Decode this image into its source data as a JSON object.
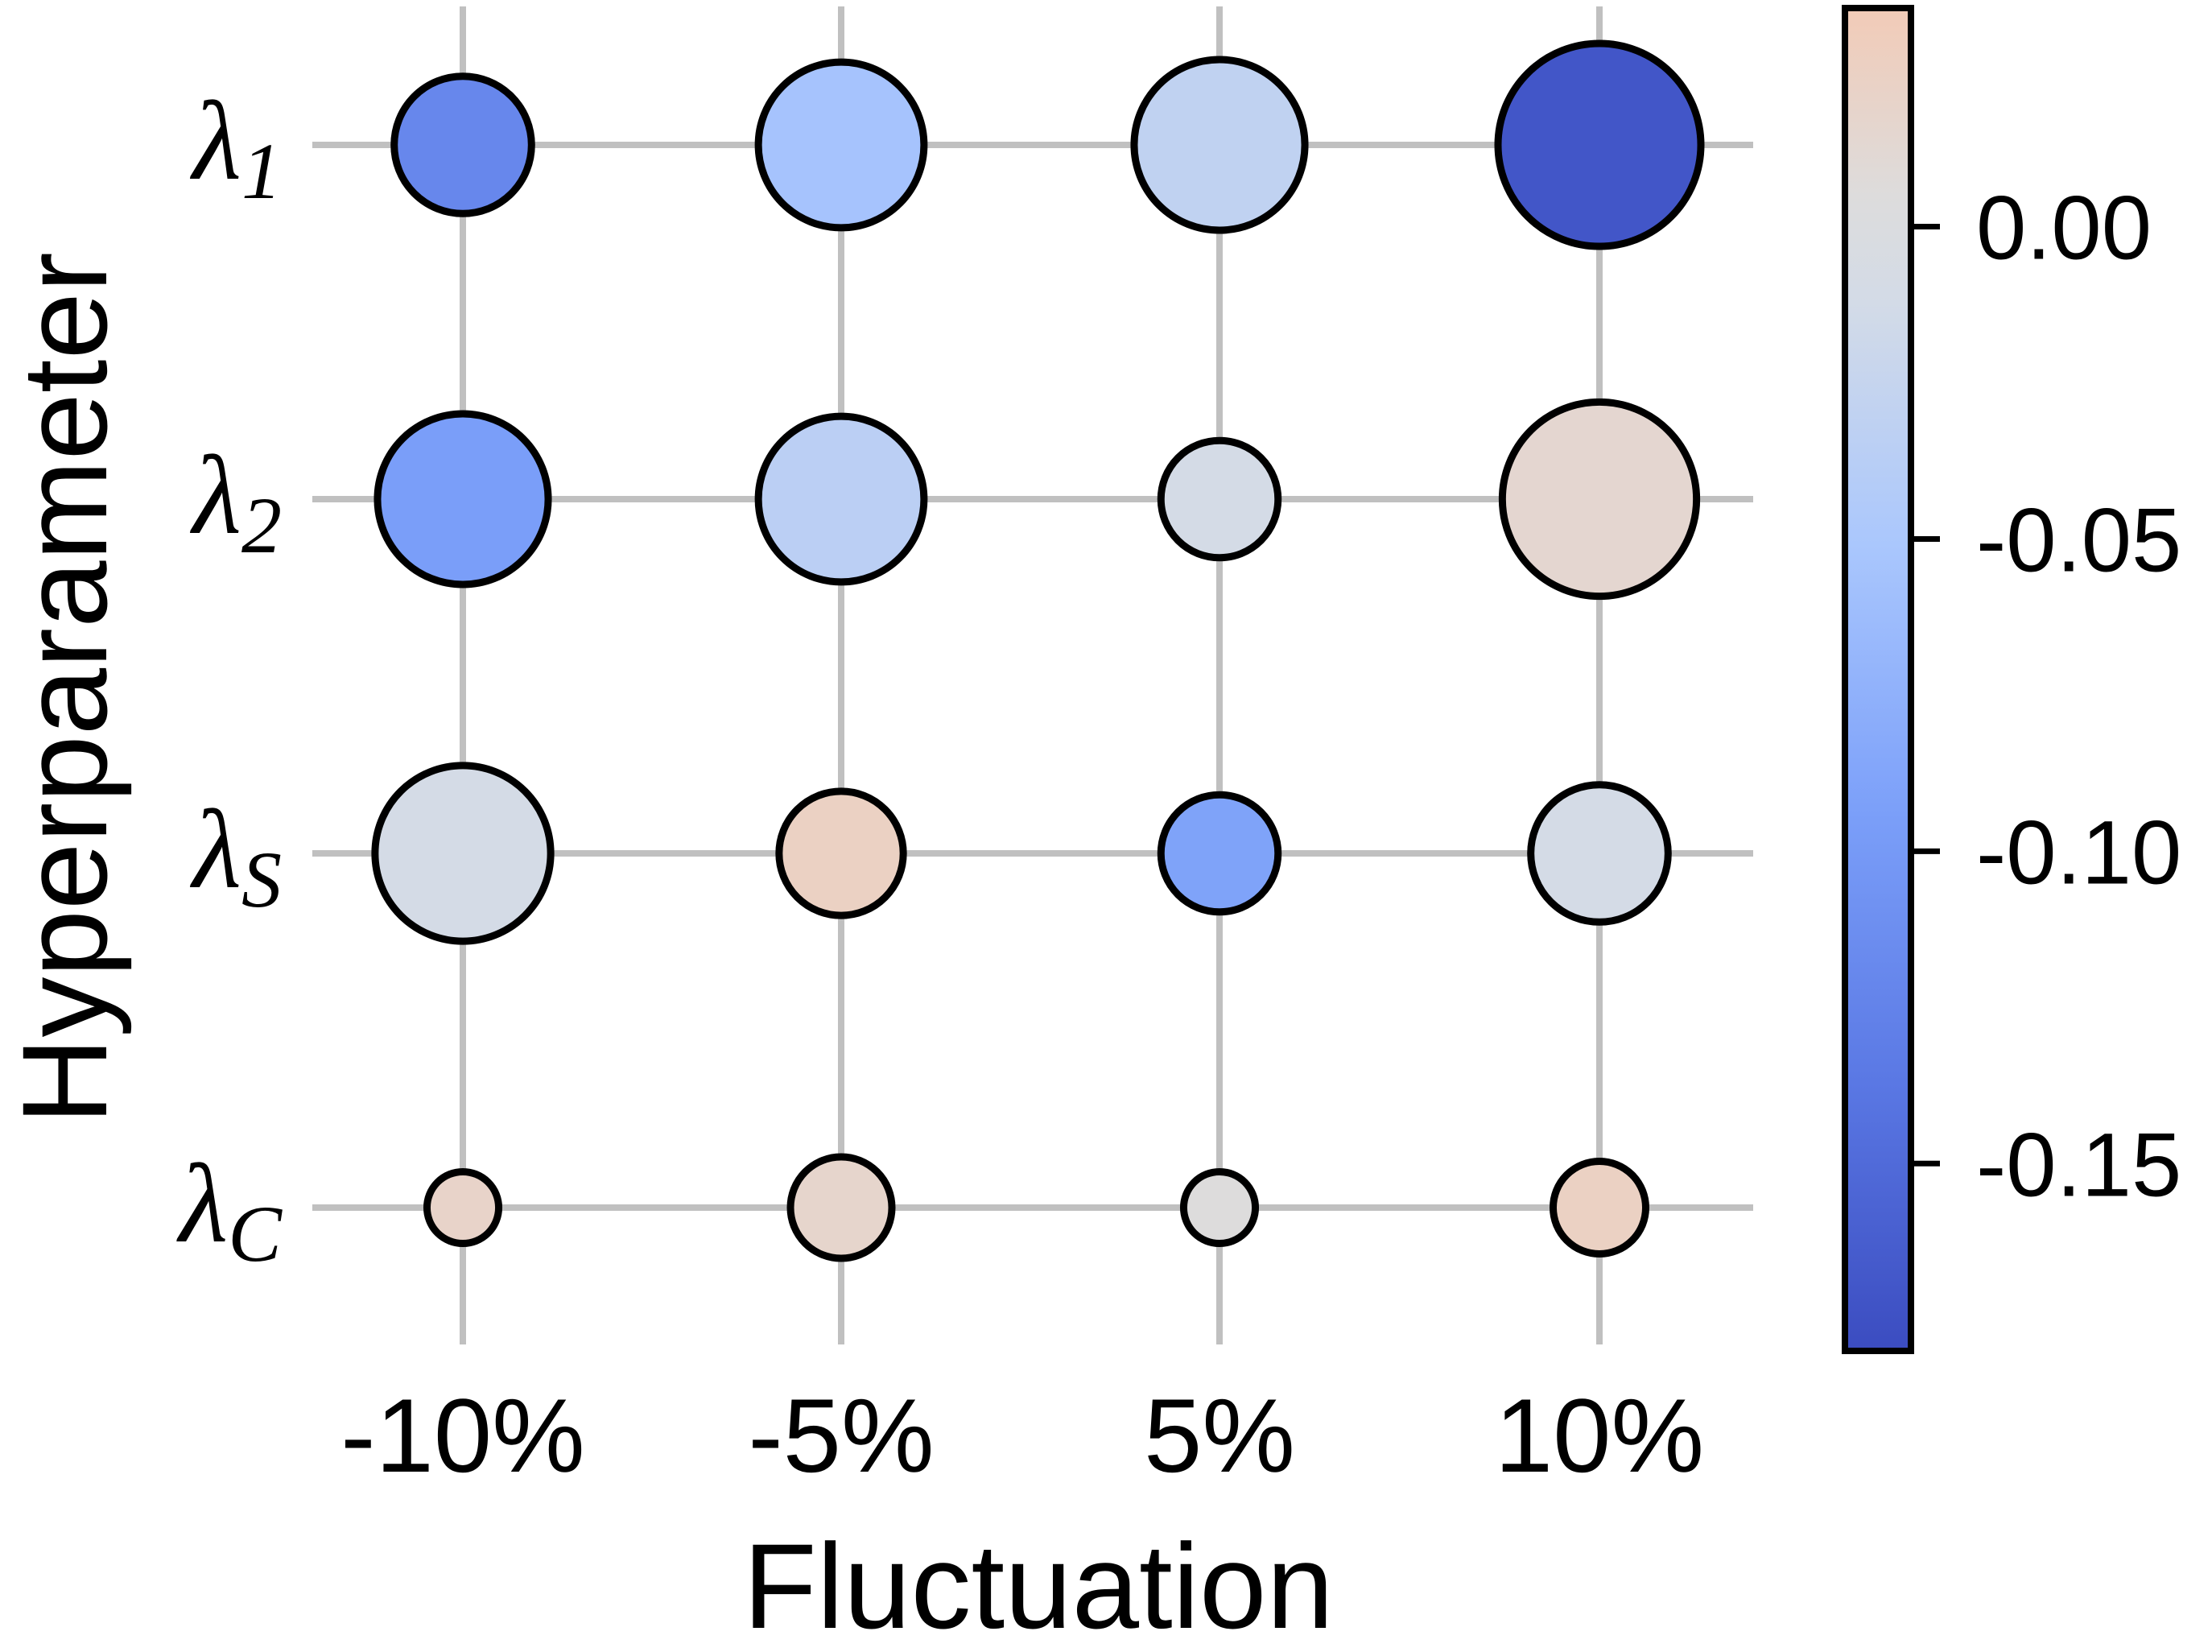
{
  "chart_data": {
    "type": "bubble-grid",
    "xlabel": "Fluctuation",
    "ylabel": "Hyperparameter",
    "categories_x": [
      "-10%",
      "-5%",
      "5%",
      "10%"
    ],
    "categories_y": [
      {
        "base": "λ",
        "sub": "1"
      },
      {
        "base": "λ",
        "sub": "2"
      },
      {
        "base": "λ",
        "sub": "S"
      },
      {
        "base": "λ",
        "sub": "C"
      }
    ],
    "points": [
      {
        "x": "-10%",
        "y": 0,
        "value": -0.12,
        "size": 0.11
      },
      {
        "x": "-5%",
        "y": 0,
        "value": -0.055,
        "size": 0.16
      },
      {
        "x": "5%",
        "y": 0,
        "value": -0.03,
        "size": 0.17
      },
      {
        "x": "10%",
        "y": 0,
        "value": -0.17,
        "size": 0.24
      },
      {
        "x": "-10%",
        "y": 1,
        "value": -0.095,
        "size": 0.17
      },
      {
        "x": "-5%",
        "y": 1,
        "value": -0.035,
        "size": 0.16
      },
      {
        "x": "5%",
        "y": 1,
        "value": -0.01,
        "size": 0.08
      },
      {
        "x": "10%",
        "y": 1,
        "value": 0.015,
        "size": 0.22
      },
      {
        "x": "-10%",
        "y": 2,
        "value": -0.01,
        "size": 0.18
      },
      {
        "x": "-5%",
        "y": 2,
        "value": 0.025,
        "size": 0.09
      },
      {
        "x": "5%",
        "y": 2,
        "value": -0.09,
        "size": 0.08
      },
      {
        "x": "10%",
        "y": 2,
        "value": -0.01,
        "size": 0.11
      },
      {
        "x": "-10%",
        "y": 3,
        "value": 0.02,
        "size": 0.03
      },
      {
        "x": "-5%",
        "y": 3,
        "value": 0.018,
        "size": 0.06
      },
      {
        "x": "5%",
        "y": 3,
        "value": 0.005,
        "size": 0.03
      },
      {
        "x": "10%",
        "y": 3,
        "value": 0.025,
        "size": 0.05
      }
    ],
    "colorbar": {
      "range": [
        -0.18,
        0.035
      ],
      "ticks": [
        0.0,
        -0.05,
        -0.1,
        -0.15
      ],
      "tick_labels": [
        "0.00",
        "-0.05",
        "-0.10",
        "-0.15"
      ],
      "colormap": "coolwarm",
      "colors": {
        "low": "#3b4cc0",
        "mid": "#dddddd",
        "high": "#f2cbb7"
      }
    },
    "grid": true,
    "grid_color": "#c0c0c0"
  }
}
